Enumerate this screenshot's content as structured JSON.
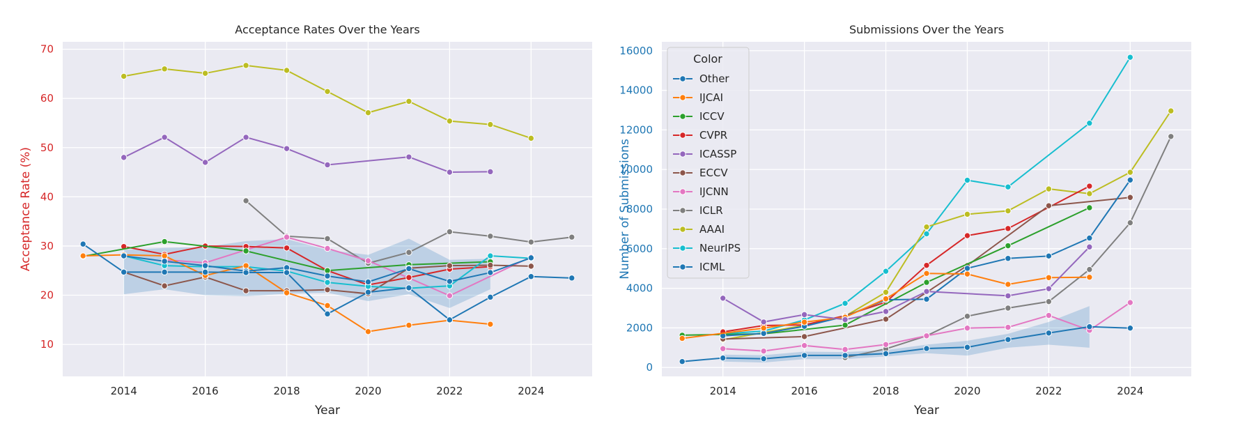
{
  "chart_data": [
    {
      "type": "line",
      "title": "Acceptance Rates Over the Years",
      "xlabel": "Year",
      "ylabel": "Acceptance Rate (%)",
      "ylabel_color": "#d62728",
      "xlim": [
        2012.5,
        2025.5
      ],
      "ylim": [
        3.5,
        71.5
      ],
      "xticks": [
        2014,
        2016,
        2018,
        2020,
        2022,
        2024
      ],
      "yticks": [
        10,
        20,
        30,
        40,
        50,
        60,
        70
      ],
      "grid": true,
      "band": {
        "x": [
          2014,
          2015,
          2016,
          2017,
          2018,
          2019,
          2020,
          2021,
          2022,
          2023
        ],
        "lower": [
          20.2,
          21.2,
          20.0,
          19.8,
          20.3,
          20.5,
          18.8,
          20.2,
          17.4,
          21.2
        ],
        "upper": [
          29.2,
          29.6,
          29.8,
          31.0,
          31.4,
          29.2,
          28.2,
          31.5,
          27.2,
          27.4
        ],
        "color": "#1f77b4"
      },
      "series": [
        {
          "name": "AAAI",
          "color": "#bcbd22",
          "x": [
            2014,
            2015,
            2016,
            2017,
            2018,
            2019,
            2020,
            2021,
            2022,
            2023,
            2024
          ],
          "values": [
            64.5,
            66.0,
            65.1,
            66.7,
            65.7,
            61.4,
            57.1,
            59.4,
            55.4,
            54.7,
            51.9
          ]
        },
        {
          "name": "ICASSP",
          "color": "#9467bd",
          "x": [
            2014,
            2015,
            2016,
            2017,
            2018,
            2019,
            2021,
            2022,
            2023
          ],
          "values": [
            48.0,
            52.1,
            47.0,
            52.1,
            49.8,
            46.5,
            48.1,
            45.0,
            45.1
          ]
        },
        {
          "name": "ICLR",
          "color": "#7f7f7f",
          "x": [
            2017,
            2018,
            2019,
            2020,
            2021,
            2022,
            2023,
            2024,
            2025
          ],
          "values": [
            39.2,
            32.0,
            31.5,
            26.5,
            28.7,
            32.9,
            32.0,
            30.8,
            31.8
          ]
        },
        {
          "name": "IJCNN",
          "color": "#e377c2",
          "x": [
            2015,
            2016,
            2017,
            2018,
            2019,
            2020,
            2021,
            2022,
            2024
          ],
          "values": [
            27.2,
            26.6,
            29.2,
            31.8,
            29.5,
            27.0,
            23.5,
            19.9,
            27.8
          ]
        },
        {
          "name": "CVPR",
          "color": "#d62728",
          "x": [
            2014,
            2015,
            2016,
            2017,
            2018,
            2019,
            2020,
            2021,
            2022,
            2023
          ],
          "values": [
            29.9,
            28.3,
            30.0,
            29.9,
            29.6,
            25.0,
            22.1,
            23.6,
            25.3,
            25.8
          ]
        },
        {
          "name": "ICCV",
          "color": "#2ca02c",
          "x": [
            2013,
            2015,
            2017,
            2019,
            2021,
            2023
          ],
          "values": [
            27.9,
            30.9,
            29.0,
            25.0,
            26.2,
            26.8
          ]
        },
        {
          "name": "ECCV",
          "color": "#8c564b",
          "x": [
            2014,
            2015,
            2016,
            2017,
            2018,
            2019,
            2020,
            2021,
            2022,
            2023,
            2024
          ],
          "values": [
            24.7,
            21.9,
            23.7,
            20.9,
            20.9,
            21.1,
            20.3,
            25.5,
            26.0,
            26.1,
            25.9
          ]
        },
        {
          "name": "NeurIPS",
          "color": "#17becf",
          "x": [
            2014,
            2015,
            2016,
            2017,
            2018,
            2019,
            2020,
            2021,
            2022,
            2023,
            2024
          ],
          "values": [
            28.0,
            26.0,
            25.8,
            25.8,
            24.9,
            22.6,
            21.8,
            21.4,
            21.9,
            28.0,
            27.5
          ]
        },
        {
          "name": "IJCAI",
          "color": "#ff7f0e",
          "x": [
            2013,
            2014,
            2015,
            2016,
            2017,
            2018,
            2019,
            2020,
            2021,
            2022,
            2023
          ],
          "values": [
            28.0,
            28.2,
            28.0,
            24.0,
            26.0,
            20.5,
            17.9,
            12.6,
            13.9,
            14.9,
            14.1
          ]
        },
        {
          "name": "ICML",
          "color": "#1f77b4",
          "x": [
            2014,
            2015,
            2016,
            2017,
            2018,
            2019,
            2020,
            2021,
            2022,
            2023,
            2024
          ],
          "values": [
            28.0,
            26.9,
            26.0,
            24.9,
            25.6,
            23.9,
            22.7,
            25.4,
            22.8,
            24.6,
            27.6
          ]
        },
        {
          "name": "Other",
          "color": "#1f77b4",
          "x": [
            2013,
            2014,
            2015,
            2016,
            2017,
            2018,
            2019,
            2020,
            2021,
            2022,
            2023,
            2024,
            2025
          ],
          "values": [
            30.4,
            24.7,
            24.7,
            24.7,
            24.6,
            24.6,
            16.2,
            20.6,
            21.5,
            15.0,
            19.6,
            23.8,
            23.5
          ]
        }
      ]
    },
    {
      "type": "line",
      "title": "Submissions Over the Years",
      "xlabel": "Year",
      "ylabel": "Number of Submissions",
      "ylabel_color": "#1f77b4",
      "xlim": [
        2012.5,
        2025.5
      ],
      "ylim": [
        -450,
        16450
      ],
      "xticks": [
        2014,
        2016,
        2018,
        2020,
        2022,
        2024
      ],
      "yticks": [
        0,
        2000,
        4000,
        6000,
        8000,
        10000,
        12000,
        14000,
        16000
      ],
      "grid": true,
      "legend_placement": "top-left",
      "legend_title": "Color",
      "legend": [
        {
          "name": "Other",
          "color": "#1f77b4"
        },
        {
          "name": "IJCAI",
          "color": "#ff7f0e"
        },
        {
          "name": "ICCV",
          "color": "#2ca02c"
        },
        {
          "name": "CVPR",
          "color": "#d62728"
        },
        {
          "name": "ICASSP",
          "color": "#9467bd"
        },
        {
          "name": "ECCV",
          "color": "#8c564b"
        },
        {
          "name": "IJCNN",
          "color": "#e377c2"
        },
        {
          "name": "ICLR",
          "color": "#7f7f7f"
        },
        {
          "name": "AAAI",
          "color": "#bcbd22"
        },
        {
          "name": "NeurIPS",
          "color": "#17becf"
        },
        {
          "name": "ICML",
          "color": "#1f77b4"
        }
      ],
      "band": {
        "x": [
          2014,
          2015,
          2016,
          2017,
          2018,
          2019,
          2020,
          2021,
          2022,
          2023
        ],
        "lower": [
          300,
          250,
          420,
          420,
          560,
          720,
          600,
          1000,
          1150,
          1000
        ],
        "upper": [
          650,
          620,
          800,
          780,
          880,
          1150,
          1350,
          1700,
          2300,
          3100
        ],
        "color": "#1f77b4"
      },
      "series": [
        {
          "name": "NeurIPS",
          "color": "#17becf",
          "x": [
            2014,
            2015,
            2016,
            2017,
            2018,
            2019,
            2020,
            2021,
            2023,
            2024
          ],
          "values": [
            1700,
            1840,
            2400,
            3240,
            4860,
            6750,
            9460,
            9120,
            12340,
            15670
          ]
        },
        {
          "name": "AAAI",
          "color": "#bcbd22",
          "x": [
            2014,
            2016,
            2017,
            2018,
            2019,
            2020,
            2021,
            2022,
            2023,
            2024,
            2025
          ],
          "values": [
            1400,
            2130,
            2590,
            3800,
            7100,
            7740,
            7910,
            9020,
            8780,
            9860,
            12960
          ]
        },
        {
          "name": "ICLR",
          "color": "#7f7f7f",
          "x": [
            2017,
            2018,
            2019,
            2020,
            2021,
            2022,
            2023,
            2024,
            2025
          ],
          "values": [
            500,
            940,
            1600,
            2590,
            3000,
            3330,
            4950,
            7310,
            11670
          ]
        },
        {
          "name": "CVPR",
          "color": "#d62728",
          "x": [
            2014,
            2015,
            2016,
            2017,
            2018,
            2019,
            2020,
            2021,
            2023
          ],
          "values": [
            1800,
            2120,
            2150,
            2620,
            3300,
            5160,
            6660,
            7020,
            9160
          ]
        },
        {
          "name": "ECCV",
          "color": "#8c564b",
          "x": [
            2014,
            2016,
            2018,
            2020,
            2022,
            2024
          ],
          "values": [
            1440,
            1560,
            2440,
            5150,
            8170,
            8590
          ]
        },
        {
          "name": "ICCV",
          "color": "#2ca02c",
          "x": [
            2013,
            2015,
            2017,
            2019,
            2021,
            2023
          ],
          "values": [
            1630,
            1700,
            2140,
            4300,
            6150,
            8070
          ]
        },
        {
          "name": "ICML",
          "color": "#1f77b4",
          "x": [
            2014,
            2015,
            2016,
            2017,
            2018,
            2019,
            2020,
            2021,
            2022,
            2023,
            2024
          ],
          "values": [
            1600,
            1720,
            2080,
            2580,
            3420,
            3450,
            5010,
            5510,
            5630,
            6540,
            9470
          ]
        },
        {
          "name": "IJCAI",
          "color": "#ff7f0e",
          "x": [
            2013,
            2015,
            2016,
            2017,
            2018,
            2019,
            2020,
            2021,
            2022,
            2023
          ],
          "values": [
            1470,
            1990,
            2290,
            2540,
            3470,
            4750,
            4720,
            4200,
            4540,
            4560
          ]
        },
        {
          "name": "ICASSP",
          "color": "#9467bd",
          "x": [
            2014,
            2015,
            2016,
            2017,
            2018,
            2019,
            2021,
            2022,
            2023
          ],
          "values": [
            3500,
            2300,
            2670,
            2420,
            2830,
            3840,
            3620,
            3980,
            6090
          ]
        },
        {
          "name": "IJCNN",
          "color": "#e377c2",
          "x": [
            2014,
            2015,
            2016,
            2017,
            2018,
            2019,
            2020,
            2021,
            2022,
            2023,
            2024
          ],
          "values": [
            950,
            830,
            1110,
            910,
            1160,
            1600,
            1990,
            2030,
            2630,
            1880,
            3280
          ]
        },
        {
          "name": "Other",
          "color": "#1f77b4",
          "x": [
            2013,
            2014,
            2015,
            2016,
            2017,
            2018,
            2019,
            2020,
            2021,
            2022,
            2023,
            2024
          ],
          "values": [
            300,
            480,
            440,
            610,
            610,
            700,
            960,
            1020,
            1410,
            1740,
            2060,
            1990
          ]
        }
      ]
    }
  ]
}
